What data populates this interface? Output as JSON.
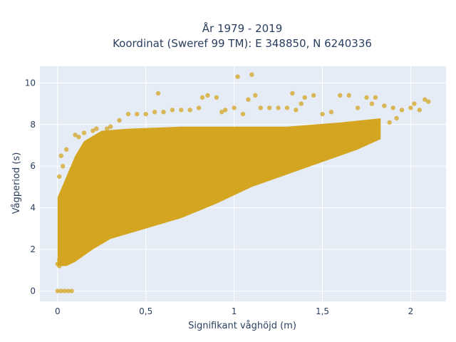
{
  "chart_data": {
    "type": "scatter",
    "title_lines": [
      "År 1979 - 2019",
      "Koordinat (Sweref 99 TM): E 348850, N 6240336"
    ],
    "xlabel": "Signifikant våghöjd (m)",
    "ylabel": "Vågperiod (s)",
    "xlim": [
      -0.1,
      2.2
    ],
    "ylim": [
      -0.5,
      10.8
    ],
    "x_ticks": [
      0,
      0.5,
      1,
      1.5,
      2
    ],
    "x_tick_labels": [
      "0",
      "0,5",
      "1",
      "1,5",
      "2"
    ],
    "y_ticks": [
      0,
      2,
      4,
      6,
      8,
      10
    ],
    "y_tick_labels": [
      "0",
      "2",
      "4",
      "6",
      "8",
      "10"
    ],
    "grid": true,
    "legend": "none",
    "series": [
      {
        "x": [
          0.0,
          0.02,
          0.04,
          0.06,
          0.08,
          0.0,
          0.01,
          0.01,
          0.02,
          0.03,
          0.01,
          0.05,
          0.1,
          0.12,
          0.15,
          0.2,
          0.22,
          0.28,
          0.3,
          0.35,
          0.4,
          0.45,
          0.5,
          0.55,
          0.57,
          0.6,
          0.65,
          0.7,
          0.75,
          0.8,
          0.82,
          0.85,
          0.9,
          0.93,
          0.95,
          1.0,
          1.02,
          1.05,
          1.08,
          1.1,
          1.12,
          1.15,
          1.2,
          1.25,
          1.3,
          1.33,
          1.35,
          1.38,
          1.4,
          1.45,
          1.5,
          1.55,
          1.6,
          1.65,
          1.7,
          1.75,
          1.78,
          1.8,
          1.85,
          1.9,
          1.95,
          2.0,
          2.02,
          2.05,
          2.08,
          2.1,
          1.88,
          1.92
        ],
        "y": [
          0.0,
          0.0,
          0.0,
          0.0,
          0.0,
          1.3,
          1.5,
          1.2,
          6.5,
          6.0,
          5.5,
          6.8,
          7.5,
          7.4,
          7.6,
          7.7,
          7.8,
          7.8,
          7.9,
          8.2,
          8.5,
          8.5,
          8.5,
          8.6,
          9.5,
          8.6,
          8.7,
          8.7,
          8.7,
          8.8,
          9.3,
          9.4,
          9.3,
          8.6,
          8.7,
          8.8,
          10.3,
          8.5,
          9.2,
          10.4,
          9.4,
          8.8,
          8.8,
          8.8,
          8.8,
          9.5,
          8.7,
          9.0,
          9.3,
          9.4,
          8.5,
          8.6,
          9.4,
          9.4,
          8.8,
          9.3,
          9.0,
          9.3,
          8.9,
          8.8,
          8.7,
          8.8,
          9.0,
          8.7,
          9.2,
          9.1,
          8.1,
          8.3
        ]
      }
    ],
    "color": "#d4a520"
  }
}
